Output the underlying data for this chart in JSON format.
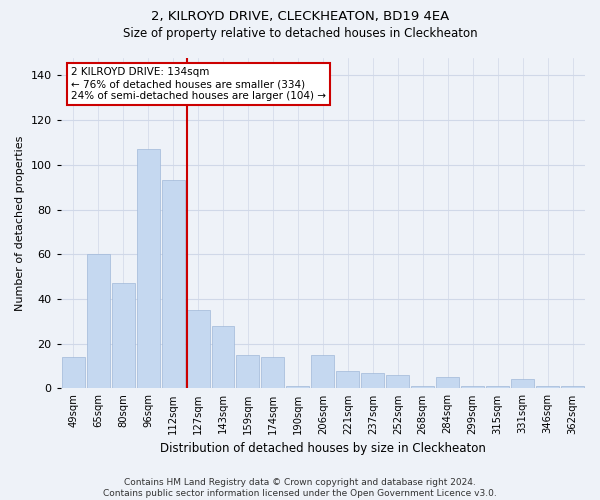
{
  "title1": "2, KILROYD DRIVE, CLECKHEATON, BD19 4EA",
  "title2": "Size of property relative to detached houses in Cleckheaton",
  "xlabel": "Distribution of detached houses by size in Cleckheaton",
  "ylabel": "Number of detached properties",
  "footer": "Contains HM Land Registry data © Crown copyright and database right 2024.\nContains public sector information licensed under the Open Government Licence v3.0.",
  "categories": [
    "49sqm",
    "65sqm",
    "80sqm",
    "96sqm",
    "112sqm",
    "127sqm",
    "143sqm",
    "159sqm",
    "174sqm",
    "190sqm",
    "206sqm",
    "221sqm",
    "237sqm",
    "252sqm",
    "268sqm",
    "284sqm",
    "299sqm",
    "315sqm",
    "331sqm",
    "346sqm",
    "362sqm"
  ],
  "values": [
    14,
    60,
    47,
    107,
    93,
    35,
    28,
    15,
    14,
    1,
    15,
    8,
    7,
    6,
    1,
    5,
    1,
    1,
    4,
    1,
    1
  ],
  "bar_color": "#c5d8f0",
  "bar_edge_color": "#a0b8d8",
  "grid_color": "#d0d8e8",
  "bg_color": "#eef2f8",
  "annotation_line1": "2 KILROYD DRIVE: 134sqm",
  "annotation_line2": "← 76% of detached houses are smaller (334)",
  "annotation_line3": "24% of semi-detached houses are larger (104) →",
  "vline_x_index": 5,
  "vline_color": "#cc0000",
  "annotation_box_color": "#ffffff",
  "annotation_box_edge": "#cc0000",
  "ylim": [
    0,
    148
  ],
  "yticks": [
    0,
    20,
    40,
    60,
    80,
    100,
    120,
    140
  ],
  "title1_fontsize": 9.5,
  "title2_fontsize": 8.5
}
